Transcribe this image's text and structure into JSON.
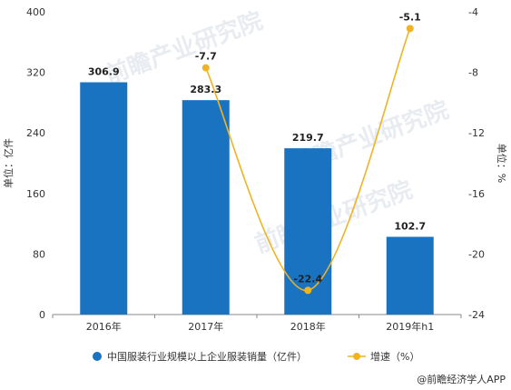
{
  "chart_data": {
    "type": "bar",
    "categories": [
      "2016年",
      "2017年",
      "2018年",
      "2019年h1"
    ],
    "series": [
      {
        "name": "中国服装行业规模以上企业服装销量（亿件）",
        "type": "bar",
        "axis": "left",
        "values": [
          306.9,
          283.3,
          219.7,
          102.7
        ],
        "labels": [
          "306.9",
          "283.3",
          "219.7",
          "102.7"
        ],
        "color": "#1a73c0"
      },
      {
        "name": "增速（%）",
        "type": "line",
        "axis": "right",
        "values": [
          null,
          -7.7,
          -22.4,
          -5.1
        ],
        "labels": [
          "",
          "-7.7",
          "-22.4",
          "-5.1"
        ],
        "color": "#f0b323"
      }
    ],
    "ylabel_left": "单位：亿件",
    "ylabel_right": "单位：%",
    "ylim_left": [
      0,
      400
    ],
    "yticks_left": [
      "0",
      "80",
      "160",
      "240",
      "320",
      "400"
    ],
    "ylim_right": [
      -24,
      -4
    ],
    "yticks_right": [
      "-24",
      "-20",
      "-16",
      "-12",
      "-8",
      "-4"
    ],
    "grid": false,
    "legend_position": "bottom"
  },
  "watermark": "前瞻产业研究院",
  "credit": "@前瞻经济学人APP"
}
